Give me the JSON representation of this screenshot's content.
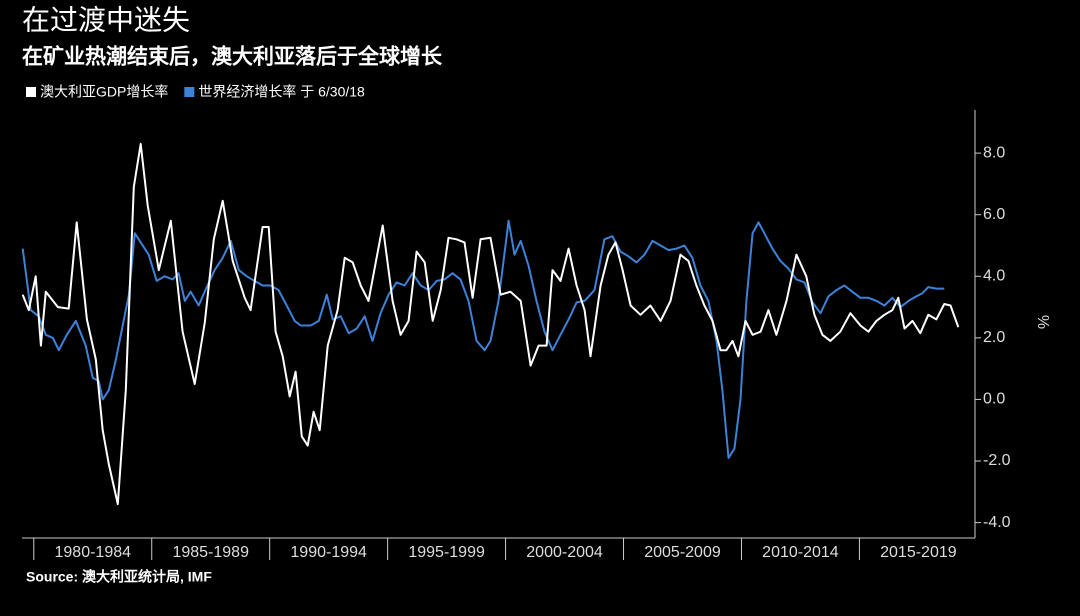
{
  "chart_data": {
    "type": "line",
    "title": "在过渡中迷失",
    "subtitle": "在矿业热潮结束后，澳大利亚落后于全球增长",
    "source": "Source: 澳大利亚统计局, IMF",
    "y_label": "%",
    "xlim": [
      1979.5,
      2019.9
    ],
    "ylim": [
      -4.5,
      9.4
    ],
    "yticks": [
      {
        "value": -4,
        "label": "-4.0"
      },
      {
        "value": -2,
        "label": "-2.0"
      },
      {
        "value": 0,
        "label": "0.0"
      },
      {
        "value": 2,
        "label": "2.0"
      },
      {
        "value": 4,
        "label": "4.0"
      },
      {
        "value": 6,
        "label": "6.0"
      },
      {
        "value": 8,
        "label": "8.0"
      }
    ],
    "xticks": [
      {
        "value": 1982.5,
        "label": "1980-1984"
      },
      {
        "value": 1987.5,
        "label": "1985-1989"
      },
      {
        "value": 1992.5,
        "label": "1990-1994"
      },
      {
        "value": 1997.5,
        "label": "1995-1999"
      },
      {
        "value": 2002.5,
        "label": "2000-2004"
      },
      {
        "value": 2007.5,
        "label": "2005-2009"
      },
      {
        "value": 2012.5,
        "label": "2010-2014"
      },
      {
        "value": 2017.5,
        "label": "2015-2019"
      }
    ],
    "series": [
      {
        "name": "澳大利亚GDP增长率",
        "color": "#ffffff",
        "x": [
          1979.53,
          1979.79,
          1980.08,
          1980.3,
          1980.51,
          1981.02,
          1981.48,
          1981.82,
          1982.25,
          1982.63,
          1982.92,
          1983.18,
          1983.56,
          1983.9,
          1984.24,
          1984.53,
          1984.83,
          1985.3,
          1985.81,
          1986.31,
          1986.82,
          1987.25,
          1987.63,
          1988.01,
          1988.43,
          1988.94,
          1989.19,
          1989.7,
          1989.96,
          1990.25,
          1990.55,
          1990.85,
          1991.1,
          1991.36,
          1991.61,
          1991.86,
          1992.12,
          1992.46,
          1992.88,
          1993.18,
          1993.52,
          1993.86,
          1994.19,
          1994.79,
          1995.21,
          1995.55,
          1995.89,
          1996.23,
          1996.57,
          1996.91,
          1997.25,
          1997.58,
          1997.92,
          1998.26,
          1998.6,
          1998.94,
          1999.36,
          1999.79,
          2000.21,
          2000.64,
          2001.06,
          2001.4,
          2001.74,
          2001.99,
          2002.33,
          2002.67,
          2003.01,
          2003.35,
          2003.6,
          2004.03,
          2004.36,
          2004.66,
          2004.96,
          2005.3,
          2005.72,
          2006.14,
          2006.57,
          2006.99,
          2007.41,
          2007.75,
          2008.09,
          2008.43,
          2008.77,
          2009.11,
          2009.36,
          2009.62,
          2009.87,
          2010.17,
          2010.47,
          2010.81,
          2011.14,
          2011.48,
          2011.91,
          2012.33,
          2012.75,
          2013.09,
          2013.43,
          2013.77,
          2014.19,
          2014.62,
          2015.04,
          2015.38,
          2015.72,
          2016.06,
          2016.4,
          2016.65,
          2016.91,
          2017.25,
          2017.58,
          2017.92,
          2018.26,
          2018.6,
          2018.86,
          2019.19
        ],
        "values": [
          3.4,
          2.9,
          4.0,
          1.75,
          3.5,
          3.0,
          2.95,
          5.75,
          2.6,
          1.3,
          -1.0,
          -2.1,
          -3.4,
          0.3,
          6.9,
          8.3,
          6.3,
          4.2,
          5.8,
          2.2,
          0.5,
          2.5,
          5.2,
          6.45,
          4.5,
          3.3,
          2.9,
          5.6,
          5.6,
          2.2,
          1.4,
          0.1,
          0.9,
          -1.2,
          -1.5,
          -0.4,
          -1.0,
          1.75,
          2.9,
          4.6,
          4.45,
          3.7,
          3.2,
          5.65,
          3.2,
          2.1,
          2.55,
          4.8,
          4.45,
          2.55,
          3.55,
          5.25,
          5.2,
          5.1,
          3.3,
          5.2,
          5.25,
          3.4,
          3.5,
          3.2,
          1.1,
          1.75,
          1.75,
          4.2,
          3.85,
          4.9,
          3.7,
          2.9,
          1.4,
          3.7,
          4.7,
          5.1,
          4.2,
          3.05,
          2.75,
          3.05,
          2.55,
          3.2,
          4.7,
          4.5,
          3.7,
          3.05,
          2.55,
          1.6,
          1.6,
          1.9,
          1.4,
          2.55,
          2.1,
          2.2,
          2.9,
          2.1,
          3.2,
          4.7,
          4.0,
          2.75,
          2.1,
          1.9,
          2.2,
          2.8,
          2.4,
          2.2,
          2.55,
          2.75,
          2.9,
          3.3,
          2.3,
          2.55,
          2.15,
          2.75,
          2.6,
          3.1,
          3.05,
          2.35
        ]
      },
      {
        "name": "世界经济增长率 于 6/30/18",
        "color": "#3d82d8",
        "x": [
          1979.53,
          1979.87,
          1980.21,
          1980.51,
          1980.81,
          1981.06,
          1981.4,
          1981.78,
          1982.2,
          1982.5,
          1982.75,
          1982.92,
          1983.18,
          1983.47,
          1983.77,
          1984.03,
          1984.28,
          1984.53,
          1984.87,
          1985.21,
          1985.55,
          1985.89,
          1986.14,
          1986.4,
          1986.65,
          1986.99,
          1987.33,
          1987.67,
          1988.01,
          1988.35,
          1988.69,
          1989.03,
          1989.36,
          1989.7,
          1990.04,
          1990.38,
          1990.72,
          1991.06,
          1991.31,
          1991.74,
          1992.08,
          1992.42,
          1992.67,
          1993.01,
          1993.35,
          1993.69,
          1994.03,
          1994.36,
          1994.7,
          1995.04,
          1995.38,
          1995.72,
          1996.06,
          1996.4,
          1996.74,
          1997.08,
          1997.42,
          1997.75,
          1998.09,
          1998.43,
          1998.77,
          1999.11,
          1999.36,
          1999.7,
          2000.13,
          2000.38,
          2000.64,
          2000.97,
          2001.31,
          2001.65,
          2001.99,
          2002.33,
          2002.67,
          2003.01,
          2003.35,
          2003.77,
          2004.19,
          2004.53,
          2004.87,
          2005.21,
          2005.55,
          2005.89,
          2006.23,
          2006.57,
          2006.91,
          2007.25,
          2007.58,
          2007.92,
          2008.26,
          2008.6,
          2008.94,
          2009.19,
          2009.45,
          2009.7,
          2009.96,
          2010.21,
          2010.47,
          2010.72,
          2010.97,
          2011.31,
          2011.65,
          2011.99,
          2012.33,
          2012.67,
          2013.01,
          2013.35,
          2013.69,
          2014.03,
          2014.36,
          2014.7,
          2015.04,
          2015.38,
          2015.72,
          2016.06,
          2016.4,
          2016.74,
          2017.08,
          2017.42,
          2017.67,
          2017.92,
          2018.26,
          2018.6
        ],
        "values": [
          4.9,
          2.9,
          2.7,
          2.1,
          2.0,
          1.6,
          2.1,
          2.55,
          1.75,
          0.7,
          0.6,
          0.0,
          0.3,
          1.25,
          2.4,
          3.4,
          5.4,
          5.1,
          4.7,
          3.85,
          4.0,
          3.9,
          4.1,
          3.2,
          3.5,
          3.05,
          3.65,
          4.2,
          4.6,
          5.15,
          4.2,
          4.0,
          3.85,
          3.7,
          3.7,
          3.55,
          3.05,
          2.55,
          2.4,
          2.4,
          2.55,
          3.4,
          2.6,
          2.7,
          2.15,
          2.3,
          2.7,
          1.9,
          2.8,
          3.4,
          3.8,
          3.7,
          4.1,
          3.7,
          3.55,
          3.85,
          3.9,
          4.1,
          3.9,
          3.2,
          1.9,
          1.6,
          1.9,
          3.2,
          5.8,
          4.7,
          5.15,
          4.35,
          3.2,
          2.2,
          1.6,
          2.1,
          2.6,
          3.15,
          3.2,
          3.55,
          5.2,
          5.3,
          4.8,
          4.65,
          4.45,
          4.7,
          5.15,
          5.0,
          4.85,
          4.9,
          5.0,
          4.6,
          3.7,
          3.2,
          1.9,
          0.3,
          -1.9,
          -1.6,
          0.0,
          3.2,
          5.4,
          5.75,
          5.4,
          4.9,
          4.5,
          4.25,
          3.9,
          3.8,
          3.15,
          2.8,
          3.35,
          3.55,
          3.7,
          3.5,
          3.3,
          3.3,
          3.2,
          3.05,
          3.3,
          3.0,
          3.2,
          3.35,
          3.45,
          3.65,
          3.6,
          3.6
        ]
      }
    ]
  }
}
